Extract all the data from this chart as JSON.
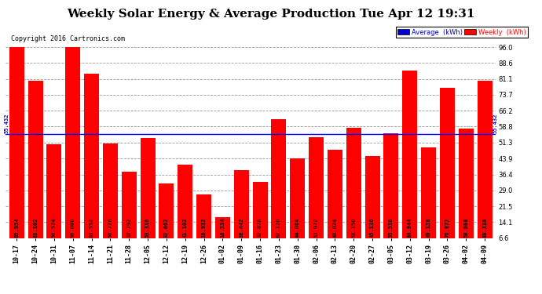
{
  "title": "Weekly Solar Energy & Average Production Tue Apr 12 19:31",
  "copyright": "Copyright 2016 Cartronics.com",
  "categories": [
    "10-17",
    "10-24",
    "10-31",
    "11-07",
    "11-14",
    "11-21",
    "11-28",
    "12-05",
    "12-12",
    "12-19",
    "12-26",
    "01-02",
    "01-09",
    "01-16",
    "01-23",
    "01-30",
    "02-06",
    "02-13",
    "02-20",
    "02-27",
    "03-05",
    "03-12",
    "03-19",
    "03-26",
    "04-02",
    "04-09"
  ],
  "values": [
    95.954,
    80.102,
    50.574,
    96.0,
    83.552,
    50.728,
    37.792,
    53.31,
    32.062,
    41.102,
    26.932,
    16.534,
    38.442,
    32.878,
    62.12,
    44.064,
    53.972,
    48.024,
    58.15,
    45.136,
    55.536,
    84.944,
    49.128,
    76.872,
    58.008,
    80.31
  ],
  "average": 55.432,
  "bar_color": "#ff0000",
  "average_line_color": "#0000ff",
  "background_color": "#ffffff",
  "plot_bg_color": "#ffffff",
  "grid_color": "#999999",
  "ylim_min": 6.6,
  "ylim_max": 96.0,
  "yticks": [
    6.6,
    14.1,
    21.5,
    29.0,
    36.4,
    43.9,
    51.3,
    58.8,
    66.2,
    73.7,
    81.1,
    88.6,
    96.0
  ],
  "title_fontsize": 11,
  "tick_fontsize": 6,
  "bar_value_fontsize": 5,
  "copyright_fontsize": 6,
  "legend_avg_color": "#0000cc",
  "legend_weekly_color": "#ff0000",
  "average_label": "Average  (kWh)",
  "weekly_label": "Weekly  (kWh)"
}
